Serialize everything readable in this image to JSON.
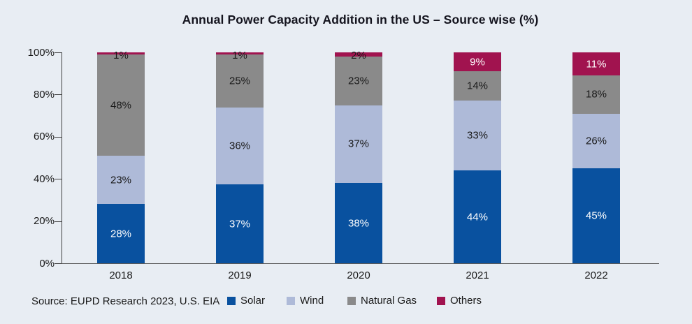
{
  "title": "Annual Power Capacity Addition in the US – Source wise (%)",
  "footer": {
    "source": "Source: EUPD Research 2023, U.S. EIA"
  },
  "colors": {
    "background": "#e8edf3",
    "axis": "#3f3f3f",
    "text": "#191919",
    "solar": "#09519f",
    "wind": "#aebad8",
    "natural_gas": "#8a8a8a",
    "others": "#a1134f"
  },
  "chart_data": {
    "type": "bar",
    "stacked": true,
    "title": "Annual Power Capacity Addition in the US – Source wise (%)",
    "categories": [
      "2018",
      "2019",
      "2020",
      "2021",
      "2022"
    ],
    "series": [
      {
        "name": "Solar",
        "color": "#09519f",
        "label_color": "#ffffff",
        "values": [
          28,
          37,
          38,
          44,
          45
        ]
      },
      {
        "name": "Wind",
        "color": "#aebad8",
        "label_color": "#1a1a1a",
        "values": [
          23,
          36,
          37,
          33,
          26
        ]
      },
      {
        "name": "Natural Gas",
        "color": "#8a8a8a",
        "label_color": "#1a1a1a",
        "values": [
          48,
          25,
          23,
          14,
          18
        ]
      },
      {
        "name": "Others",
        "color": "#a1134f",
        "label_color": "#ffffff",
        "values": [
          1,
          1,
          2,
          9,
          11
        ]
      }
    ],
    "data_label_suffix": "%",
    "xlabel": "",
    "ylabel": "",
    "ylim": [
      0,
      100
    ],
    "y_ticks": [
      0,
      20,
      40,
      60,
      80,
      100
    ],
    "y_tick_suffix": "%",
    "grid": false,
    "legend_position": "bottom",
    "legend": [
      "Solar",
      "Wind",
      "Natural Gas",
      "Others"
    ]
  }
}
